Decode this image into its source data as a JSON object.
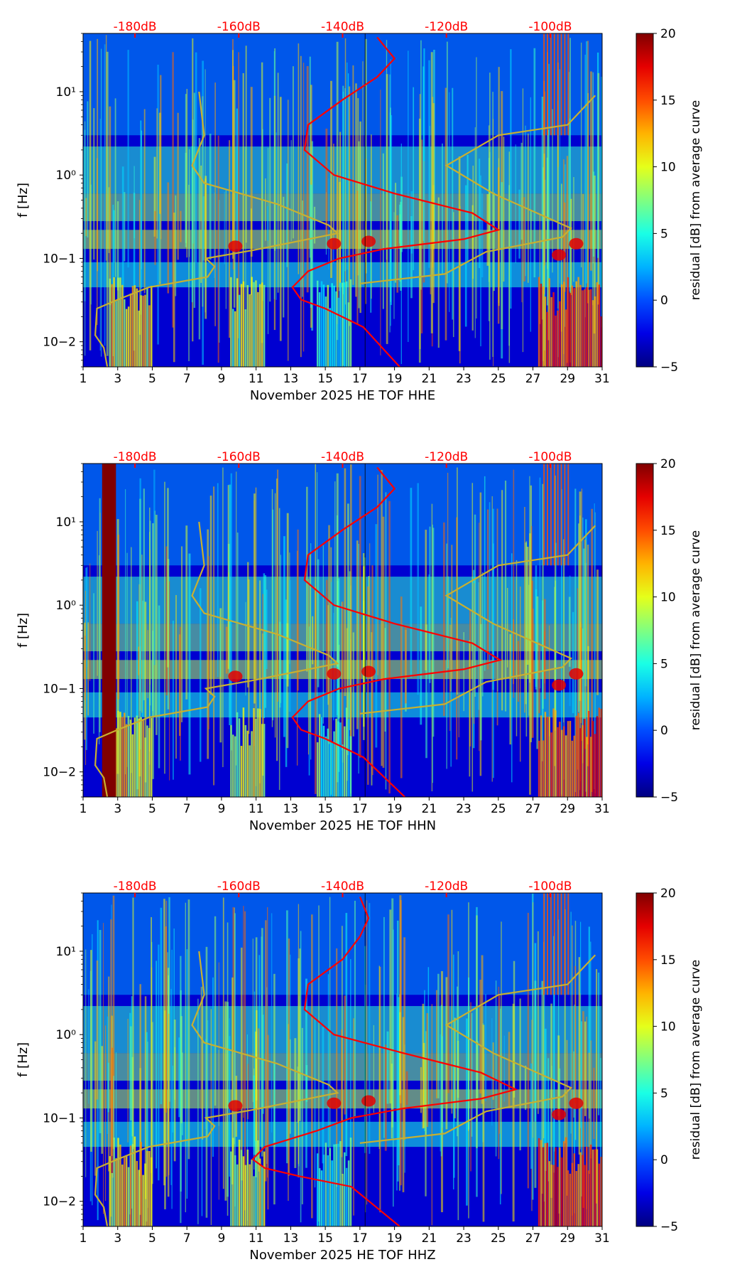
{
  "chart_data": [
    {
      "type": "heatmap",
      "xlabel": "November 2025 HE TOF  HHE",
      "ylabel": "f [Hz]",
      "x_tick_labels": [
        "1",
        "3",
        "5",
        "7",
        "9",
        "11",
        "13",
        "15",
        "17",
        "19",
        "21",
        "23",
        "25",
        "27",
        "29",
        "31"
      ],
      "x_range": [
        1,
        31
      ],
      "y_range_hz": [
        0.005,
        50
      ],
      "y_tick_labels": [
        "10−2",
        "10−1",
        "10⁰",
        "10¹"
      ],
      "top_tick_labels": [
        "-180dB",
        "-160dB",
        "-140dB",
        "-120dB",
        "-100dB"
      ],
      "colorbar": {
        "label": "residual [dB] from average curve",
        "range": [
          -5,
          20
        ],
        "tick_labels": [
          "20",
          "15",
          "10",
          "5",
          "0",
          "−5"
        ]
      },
      "curves": {
        "yellow_model_line": [
          [
            2.4,
            0.005
          ],
          [
            2.2,
            0.0085
          ],
          [
            1.7,
            0.012
          ],
          [
            1.8,
            0.025
          ],
          [
            3.0,
            0.032
          ],
          [
            4.8,
            0.045
          ],
          [
            8.2,
            0.06
          ],
          [
            8.6,
            0.08
          ],
          [
            8.1,
            0.1
          ],
          [
            10.8,
            0.125
          ],
          [
            15.7,
            0.2
          ],
          [
            15.2,
            0.25
          ],
          [
            12.2,
            0.45
          ],
          [
            8.0,
            0.8
          ],
          [
            7.3,
            1.3
          ],
          [
            8.0,
            3.0
          ],
          [
            7.7,
            10
          ]
        ],
        "red_average_line": [
          [
            19.3,
            0.005
          ],
          [
            17.2,
            0.015
          ],
          [
            15.0,
            0.025
          ],
          [
            13.6,
            0.032
          ],
          [
            13.1,
            0.045
          ],
          [
            14.0,
            0.07
          ],
          [
            15.8,
            0.1
          ],
          [
            18.4,
            0.13
          ],
          [
            23.0,
            0.17
          ],
          [
            25.0,
            0.22
          ],
          [
            23.5,
            0.35
          ],
          [
            19.0,
            0.6
          ],
          [
            15.5,
            1.0
          ],
          [
            13.8,
            2.0
          ],
          [
            14.0,
            4.0
          ],
          [
            16.0,
            8.0
          ],
          [
            18.0,
            15
          ],
          [
            19.0,
            25
          ],
          [
            18.0,
            45
          ]
        ],
        "yellow_model_line_right": [
          [
            17.0,
            0.05
          ],
          [
            21.9,
            0.065
          ],
          [
            24.3,
            0.12
          ],
          [
            28.7,
            0.18
          ],
          [
            29.2,
            0.23
          ],
          [
            24.7,
            0.6
          ],
          [
            22.0,
            1.3
          ],
          [
            25.0,
            3.0
          ],
          [
            29.0,
            4.0
          ],
          [
            30.6,
            9.0
          ]
        ]
      }
    },
    {
      "type": "heatmap",
      "xlabel": "November 2025 HE TOF  HHN",
      "ylabel": "f [Hz]",
      "x_tick_labels": [
        "1",
        "3",
        "5",
        "7",
        "9",
        "11",
        "13",
        "15",
        "17",
        "19",
        "21",
        "23",
        "25",
        "27",
        "29",
        "31"
      ],
      "x_range": [
        1,
        31
      ],
      "y_range_hz": [
        0.005,
        50
      ],
      "y_tick_labels": [
        "10−2",
        "10−1",
        "10⁰",
        "10¹"
      ],
      "top_tick_labels": [
        "-180dB",
        "-160dB",
        "-140dB",
        "-120dB",
        "-100dB"
      ],
      "colorbar": {
        "label": "residual [dB] from average curve",
        "range": [
          -5,
          20
        ],
        "tick_labels": [
          "20",
          "15",
          "10",
          "5",
          "0",
          "−5"
        ]
      },
      "saturated_band_days": [
        2.1,
        2.9
      ],
      "curves": {
        "yellow_model_line": [
          [
            2.4,
            0.005
          ],
          [
            2.2,
            0.0085
          ],
          [
            1.7,
            0.012
          ],
          [
            1.8,
            0.025
          ],
          [
            3.0,
            0.032
          ],
          [
            4.8,
            0.045
          ],
          [
            8.2,
            0.06
          ],
          [
            8.6,
            0.08
          ],
          [
            8.1,
            0.1
          ],
          [
            10.8,
            0.125
          ],
          [
            15.7,
            0.2
          ],
          [
            15.2,
            0.25
          ],
          [
            12.2,
            0.45
          ],
          [
            8.0,
            0.8
          ],
          [
            7.3,
            1.3
          ],
          [
            8.0,
            3.0
          ],
          [
            7.7,
            10
          ]
        ],
        "red_average_line": [
          [
            19.6,
            0.005
          ],
          [
            17.2,
            0.015
          ],
          [
            15.0,
            0.025
          ],
          [
            13.6,
            0.032
          ],
          [
            13.1,
            0.045
          ],
          [
            14.0,
            0.07
          ],
          [
            15.8,
            0.1
          ],
          [
            18.4,
            0.13
          ],
          [
            23.0,
            0.17
          ],
          [
            25.1,
            0.22
          ],
          [
            23.5,
            0.35
          ],
          [
            19.0,
            0.6
          ],
          [
            15.5,
            1.0
          ],
          [
            13.8,
            2.0
          ],
          [
            14.0,
            4.0
          ],
          [
            16.0,
            8.0
          ],
          [
            18.0,
            15
          ],
          [
            19.0,
            25
          ],
          [
            18.0,
            45
          ]
        ],
        "yellow_model_line_right": [
          [
            17.0,
            0.05
          ],
          [
            21.9,
            0.065
          ],
          [
            24.3,
            0.12
          ],
          [
            28.7,
            0.18
          ],
          [
            29.2,
            0.23
          ],
          [
            24.7,
            0.6
          ],
          [
            22.0,
            1.3
          ],
          [
            25.0,
            3.0
          ],
          [
            29.0,
            4.0
          ],
          [
            30.6,
            9.0
          ]
        ]
      }
    },
    {
      "type": "heatmap",
      "xlabel": "November 2025 HE TOF  HHZ",
      "ylabel": "f [Hz]",
      "x_tick_labels": [
        "1",
        "3",
        "5",
        "7",
        "9",
        "11",
        "13",
        "15",
        "17",
        "19",
        "21",
        "23",
        "25",
        "27",
        "29",
        "31"
      ],
      "x_range": [
        1,
        31
      ],
      "y_range_hz": [
        0.005,
        50
      ],
      "y_tick_labels": [
        "10−2",
        "10−1",
        "10⁰",
        "10¹"
      ],
      "top_tick_labels": [
        "-180dB",
        "-160dB",
        "-140dB",
        "-120dB",
        "-100dB"
      ],
      "colorbar": {
        "label": "residual [dB] from average curve",
        "range": [
          -5,
          20
        ],
        "tick_labels": [
          "20",
          "15",
          "10",
          "5",
          "0",
          "−5"
        ]
      },
      "curves": {
        "yellow_model_line": [
          [
            2.4,
            0.005
          ],
          [
            2.2,
            0.0085
          ],
          [
            1.7,
            0.012
          ],
          [
            1.8,
            0.025
          ],
          [
            3.0,
            0.032
          ],
          [
            4.8,
            0.045
          ],
          [
            8.2,
            0.06
          ],
          [
            8.6,
            0.08
          ],
          [
            8.1,
            0.1
          ],
          [
            10.8,
            0.125
          ],
          [
            15.7,
            0.2
          ],
          [
            15.2,
            0.25
          ],
          [
            12.2,
            0.45
          ],
          [
            8.0,
            0.8
          ],
          [
            7.3,
            1.3
          ],
          [
            8.0,
            3.0
          ],
          [
            7.7,
            10
          ]
        ],
        "red_average_line": [
          [
            19.3,
            0.005
          ],
          [
            16.5,
            0.015
          ],
          [
            13.5,
            0.02
          ],
          [
            11.5,
            0.025
          ],
          [
            10.8,
            0.032
          ],
          [
            11.5,
            0.045
          ],
          [
            14.5,
            0.07
          ],
          [
            16.5,
            0.1
          ],
          [
            19.5,
            0.13
          ],
          [
            24.0,
            0.17
          ],
          [
            26.0,
            0.22
          ],
          [
            24.0,
            0.35
          ],
          [
            19.5,
            0.6
          ],
          [
            15.5,
            1.0
          ],
          [
            13.8,
            2.0
          ],
          [
            14.0,
            4.0
          ],
          [
            16.0,
            8.0
          ],
          [
            17.0,
            15
          ],
          [
            17.5,
            25
          ],
          [
            17.0,
            45
          ]
        ],
        "yellow_model_line_right": [
          [
            17.0,
            0.05
          ],
          [
            21.9,
            0.065
          ],
          [
            24.3,
            0.12
          ],
          [
            28.7,
            0.18
          ],
          [
            29.2,
            0.23
          ],
          [
            24.7,
            0.6
          ],
          [
            22.0,
            1.3
          ],
          [
            25.0,
            3.0
          ],
          [
            29.0,
            4.0
          ],
          [
            30.6,
            9.0
          ]
        ]
      }
    }
  ]
}
